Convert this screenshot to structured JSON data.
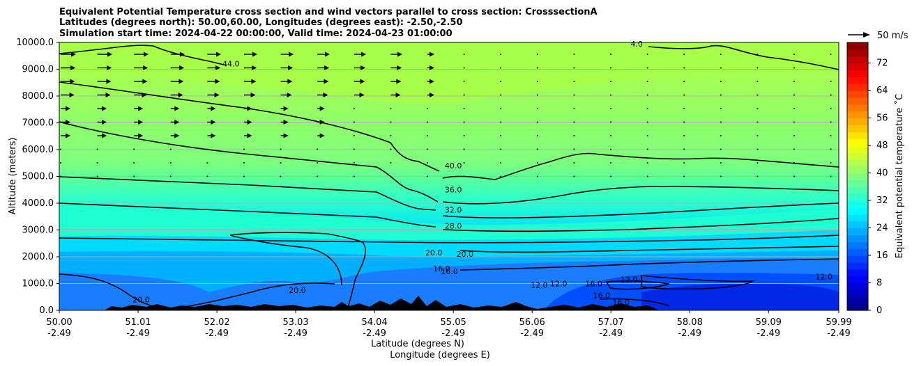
{
  "chart_data": {
    "type": "contourf",
    "title_lines": [
      "Equivalent Potential Temperature cross section and wind vectors parallel to cross section: CrosssectionA",
      "Latitudes (degrees north): 50.00,60.00, Longitudes (degrees east): -2.50,-2.50",
      "Simulation start time: 2024-04-22 00:00:00, Valid time: 2024-04-23 01:00:00"
    ],
    "xlabel_lat": "Latitude (degrees N)",
    "xlabel_lon": "Longitude (degrees E)",
    "ylabel": "Altitude (meters)",
    "x_ticks": [
      {
        "lat": "50.00",
        "lon": "-2.49"
      },
      {
        "lat": "51.01",
        "lon": "-2.49"
      },
      {
        "lat": "52.02",
        "lon": "-2.49"
      },
      {
        "lat": "53.03",
        "lon": "-2.49"
      },
      {
        "lat": "54.04",
        "lon": "-2.49"
      },
      {
        "lat": "55.05",
        "lon": "-2.49"
      },
      {
        "lat": "56.06",
        "lon": "-2.49"
      },
      {
        "lat": "57.07",
        "lon": "-2.49"
      },
      {
        "lat": "58.08",
        "lon": "-2.49"
      },
      {
        "lat": "59.09",
        "lon": "-2.49"
      },
      {
        "lat": "59.99",
        "lon": "-2.49"
      }
    ],
    "y_ticks": [
      "0.0",
      "1000.0",
      "2000.0",
      "3000.0",
      "4000.0",
      "5000.0",
      "6000.0",
      "7000.0",
      "8000.0",
      "9000.0",
      "10000.0"
    ],
    "ylim": [
      0,
      10000
    ],
    "colorbar": {
      "label": "Equivalent potential temperature ˚C",
      "range": [
        0,
        78
      ],
      "ticks": [
        "0",
        "8",
        "16",
        "24",
        "32",
        "40",
        "48",
        "56",
        "64",
        "72"
      ]
    },
    "quiver_key": "50 m/s",
    "contour_labels": [
      {
        "text": "44.0",
        "lat": 52.2,
        "alt": 9100
      },
      {
        "text": "4.0",
        "lat": 57.4,
        "alt": 9850
      },
      {
        "text": "40.0",
        "lat": 55.05,
        "alt": 5300
      },
      {
        "text": "36.0",
        "lat": 55.05,
        "alt": 4400
      },
      {
        "text": "32.0",
        "lat": 55.05,
        "alt": 3650
      },
      {
        "text": "28.0",
        "lat": 55.05,
        "alt": 3050
      },
      {
        "text": "20.0",
        "lat": 54.8,
        "alt": 2050
      },
      {
        "text": "20.0",
        "lat": 55.2,
        "alt": 2000
      },
      {
        "text": "16.0",
        "lat": 54.9,
        "alt": 1450
      },
      {
        "text": "16.0",
        "lat": 55.0,
        "alt": 1350
      },
      {
        "text": "20.0",
        "lat": 51.05,
        "alt": 300
      },
      {
        "text": "20.0",
        "lat": 53.05,
        "alt": 650
      },
      {
        "text": "12.0",
        "lat": 56.15,
        "alt": 850
      },
      {
        "text": "12.0",
        "lat": 56.4,
        "alt": 900
      },
      {
        "text": "16.0",
        "lat": 56.85,
        "alt": 900
      },
      {
        "text": "16.0",
        "lat": 56.95,
        "alt": 450
      },
      {
        "text": "12.0",
        "lat": 57.3,
        "alt": 1050
      },
      {
        "text": "16.0",
        "lat": 57.2,
        "alt": 200
      },
      {
        "text": "12.0",
        "lat": 59.8,
        "alt": 1150
      }
    ]
  }
}
